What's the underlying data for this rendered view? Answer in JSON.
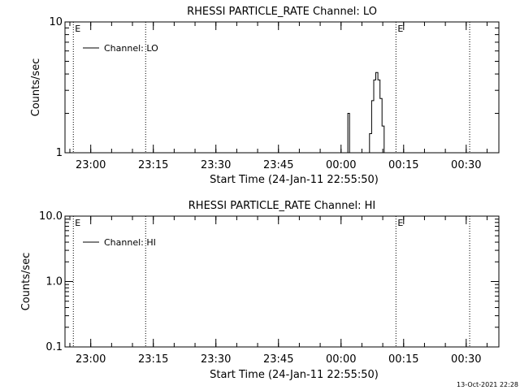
{
  "footer": {
    "timestamp": "13-Oct-2021 22:28"
  },
  "chart_data": [
    {
      "type": "line",
      "title": "RHESSI PARTICLE_RATE Channel: LO",
      "xlabel": "Start Time (24-Jan-11 22:55:50)",
      "ylabel": "Counts/sec",
      "y_scale": "log",
      "ylim": [
        1,
        10
      ],
      "y_ticks": [
        1,
        10
      ],
      "y_tick_labels": [
        "1",
        "10"
      ],
      "x_ticks": [
        "23:00",
        "23:15",
        "23:30",
        "23:45",
        "00:00",
        "00:15",
        "00:30"
      ],
      "x_tick_minutes": [
        4.17,
        19.17,
        34.17,
        49.17,
        64.17,
        79.17,
        94.17
      ],
      "xlim_minutes": [
        -2.0,
        102.0
      ],
      "legend": {
        "label": "Channel: LO",
        "position": "top-left"
      },
      "event_markers": [
        {
          "label": "E",
          "x_minutes": 0.0,
          "show_label": true
        },
        {
          "label": "E",
          "x_minutes": 17.33,
          "show_label": false
        },
        {
          "label": "E",
          "x_minutes": 77.33,
          "show_label": true
        },
        {
          "label": "",
          "x_minutes": 95.0,
          "show_label": false
        }
      ],
      "series": [
        {
          "name": "Channel: LO",
          "points": [
            [
              -2.0,
              1
            ],
            [
              65.8,
              1
            ],
            [
              65.8,
              2.0
            ],
            [
              66.2,
              2.0
            ],
            [
              66.2,
              1
            ],
            [
              71.0,
              1
            ],
            [
              71.0,
              1.4
            ],
            [
              71.5,
              1.4
            ],
            [
              71.5,
              2.5
            ],
            [
              72.0,
              2.5
            ],
            [
              72.0,
              3.6
            ],
            [
              72.5,
              3.6
            ],
            [
              72.5,
              4.1
            ],
            [
              73.0,
              4.1
            ],
            [
              73.0,
              3.6
            ],
            [
              73.5,
              3.6
            ],
            [
              73.5,
              2.6
            ],
            [
              74.0,
              2.6
            ],
            [
              74.0,
              1.6
            ],
            [
              74.5,
              1.6
            ],
            [
              74.5,
              1
            ],
            [
              102.0,
              1
            ]
          ]
        }
      ]
    },
    {
      "type": "line",
      "title": "RHESSI PARTICLE_RATE Channel: HI",
      "xlabel": "Start Time (24-Jan-11 22:55:50)",
      "ylabel": "Counts/sec",
      "y_scale": "log",
      "ylim": [
        0.1,
        10
      ],
      "y_ticks": [
        0.1,
        1,
        10
      ],
      "y_tick_labels": [
        "0.1",
        "1.0",
        "10.0"
      ],
      "x_ticks": [
        "23:00",
        "23:15",
        "23:30",
        "23:45",
        "00:00",
        "00:15",
        "00:30"
      ],
      "x_tick_minutes": [
        4.17,
        19.17,
        34.17,
        49.17,
        64.17,
        79.17,
        94.17
      ],
      "xlim_minutes": [
        -2.0,
        102.0
      ],
      "legend": {
        "label": "Channel: HI",
        "position": "top-left"
      },
      "event_markers": [
        {
          "label": "E",
          "x_minutes": 0.0,
          "show_label": true
        },
        {
          "label": "E",
          "x_minutes": 17.33,
          "show_label": false
        },
        {
          "label": "E",
          "x_minutes": 77.33,
          "show_label": true
        },
        {
          "label": "",
          "x_minutes": 95.0,
          "show_label": false
        }
      ],
      "series": [
        {
          "name": "Channel: HI",
          "points": []
        }
      ]
    }
  ]
}
